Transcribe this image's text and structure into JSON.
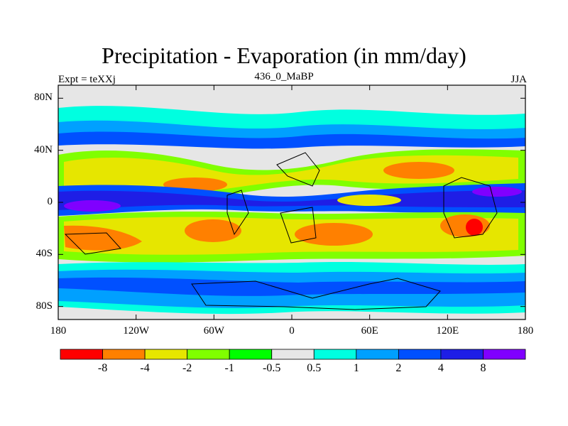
{
  "figure": {
    "title": "Precipitation - Evaporation (in mm/day)",
    "left_label": "Expt = teXXj",
    "center_label": "436_0_MaBP",
    "right_label": "JJA"
  },
  "map": {
    "projection": "equirectangular",
    "lat_range": [
      -90,
      90
    ],
    "lon_range": [
      -180,
      180
    ],
    "lat_tick_labels": [
      "80N",
      "40N",
      "0",
      "40S",
      "80S"
    ],
    "lat_tick_values": [
      80,
      40,
      0,
      -40,
      -80
    ],
    "lon_tick_labels": [
      "180",
      "120W",
      "60W",
      "0",
      "60E",
      "120E",
      "180"
    ],
    "lon_tick_values": [
      -180,
      -120,
      -60,
      0,
      60,
      120,
      180
    ]
  },
  "colorbar": {
    "colors": [
      "#ff0000",
      "#ff8000",
      "#e6e600",
      "#80ff00",
      "#00ff00",
      "#e6e6e6",
      "#00ffe0",
      "#00a0ff",
      "#0050ff",
      "#1e1ee6",
      "#8000ff"
    ],
    "labels": [
      "-8",
      "-4",
      "-2",
      "-1",
      "-0.5",
      "0.5",
      "1",
      "2",
      "4",
      "8"
    ]
  }
}
